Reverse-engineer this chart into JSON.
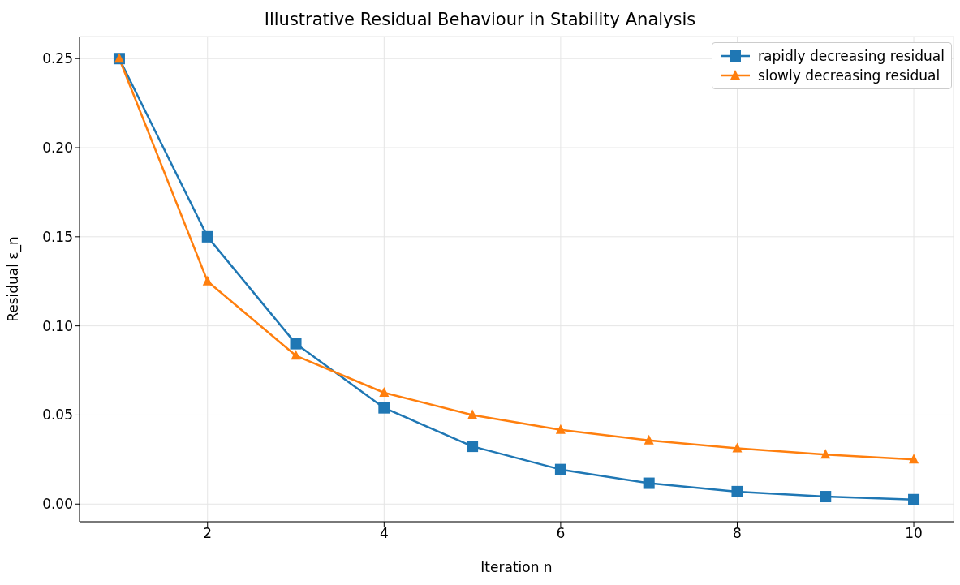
{
  "chart_data": {
    "type": "line",
    "title": "Illustrative Residual Behaviour in Stability Analysis",
    "xlabel": "Iteration n",
    "ylabel": "Residual ε_n",
    "x": [
      1,
      2,
      3,
      4,
      5,
      6,
      7,
      8,
      9,
      10
    ],
    "series": [
      {
        "name": "rapidly decreasing residual",
        "color": "#1f77b4",
        "marker": "square",
        "values": [
          0.25,
          0.15,
          0.09,
          0.054,
          0.0324,
          0.0194,
          0.0117,
          0.007,
          0.0042,
          0.0025
        ]
      },
      {
        "name": "slowly decreasing residual",
        "color": "#ff7f0e",
        "marker": "triangle",
        "values": [
          0.25,
          0.125,
          0.0833,
          0.0625,
          0.05,
          0.0417,
          0.0357,
          0.0313,
          0.0278,
          0.025
        ]
      }
    ],
    "xlim": [
      0.55,
      10.45
    ],
    "xticks": [
      2,
      4,
      6,
      8,
      10
    ],
    "ylim": [
      -0.0099,
      0.2624
    ],
    "yticks": [
      {
        "value": 0,
        "label": "0.00"
      },
      {
        "value": 0.05,
        "label": "0.05"
      },
      {
        "value": 0.1,
        "label": "0.10"
      },
      {
        "value": 0.15,
        "label": "0.15"
      },
      {
        "value": 0.2,
        "label": "0.20"
      },
      {
        "value": 0.25,
        "label": "0.25"
      }
    ],
    "grid": true,
    "legend": "top right",
    "line_style": "solid"
  }
}
